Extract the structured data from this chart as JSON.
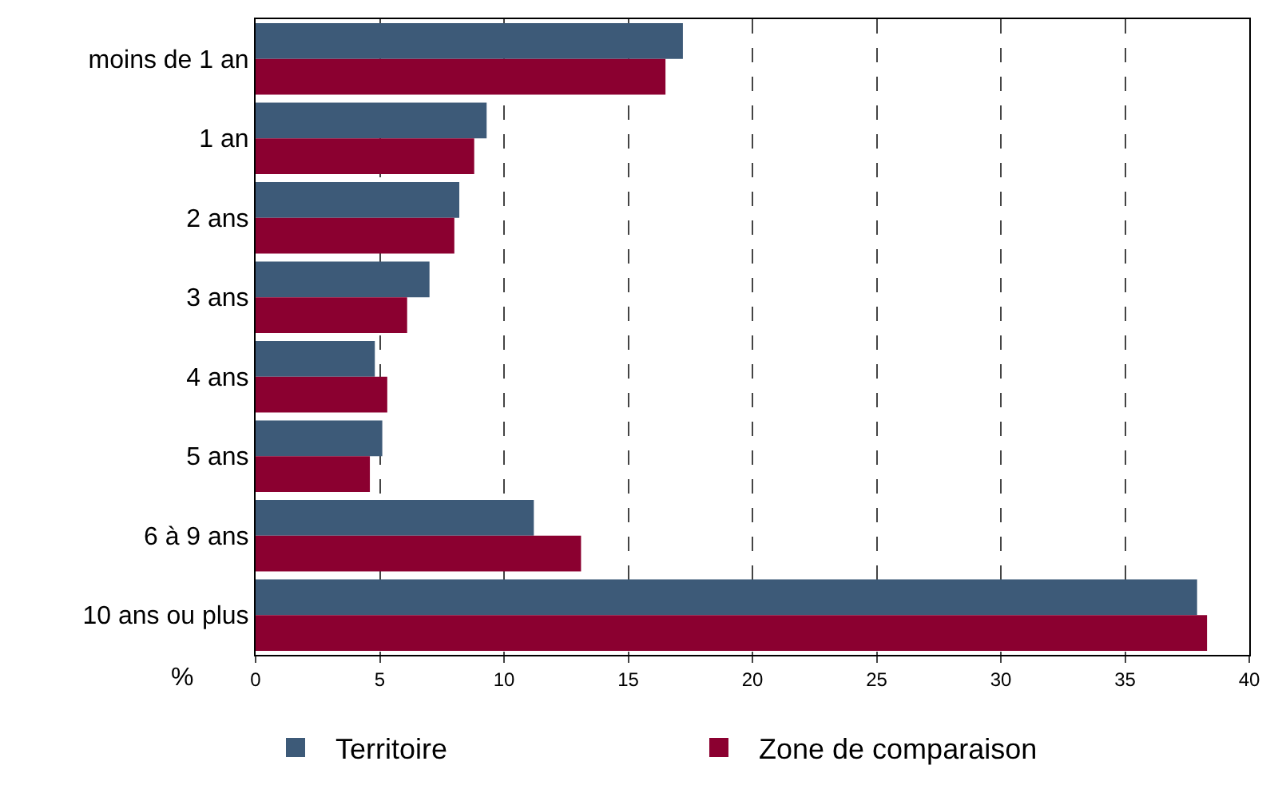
{
  "chart_data": {
    "type": "bar",
    "orientation": "horizontal",
    "xlabel": "%",
    "categories": [
      "moins de 1 an",
      "1 an",
      "2 ans",
      "3 ans",
      "4 ans",
      "5 ans",
      "6 à 9 ans",
      "10 ans ou plus"
    ],
    "series": [
      {
        "name": "Territoire",
        "color": "#3d5a78",
        "values": [
          17.2,
          9.3,
          8.2,
          7.0,
          4.8,
          5.1,
          11.2,
          37.9
        ]
      },
      {
        "name": "Zone de comparaison",
        "color": "#8b0030",
        "values": [
          16.5,
          8.8,
          8.0,
          6.1,
          5.3,
          4.6,
          13.1,
          38.3
        ]
      }
    ],
    "xlim": [
      0,
      40
    ],
    "xticks": [
      0,
      5,
      10,
      15,
      20,
      25,
      30,
      35,
      40
    ],
    "grid": "x",
    "legend": "bottom"
  }
}
